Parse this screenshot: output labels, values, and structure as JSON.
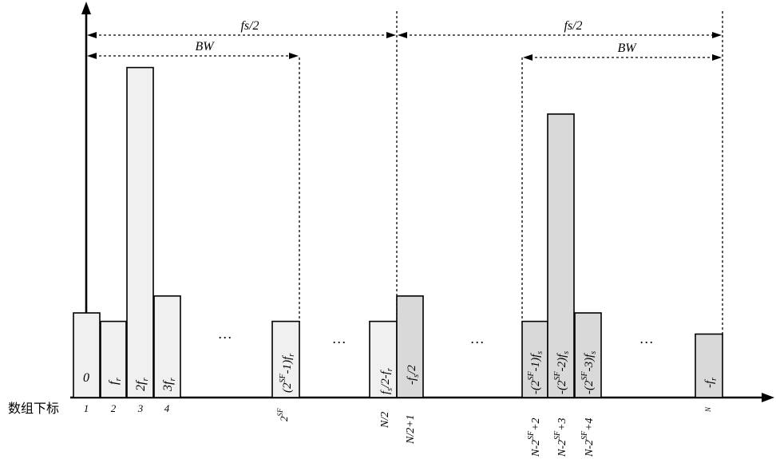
{
  "axis_label": "数组下标",
  "colors": {
    "bar_light": "#f0f0f0",
    "bar_dark": "#d9d9d9",
    "line": "#000000"
  },
  "spans": {
    "left_fs": "fs/2",
    "left_bw": "BW",
    "right_fs": "fs/2",
    "right_bw": "BW"
  },
  "ellipsis": "…",
  "bars": [
    {
      "id": "bar-0",
      "index_label": "1",
      "inner_label": "0",
      "height_level": 1.0,
      "shade": "light"
    },
    {
      "id": "bar-fr",
      "index_label": "2",
      "inner_label": "f_r",
      "height_level": 0.9,
      "shade": "light"
    },
    {
      "id": "bar-2fr",
      "index_label": "3",
      "inner_label": "2f_r",
      "height_level": 3.9,
      "shade": "light"
    },
    {
      "id": "bar-3fr",
      "index_label": "4",
      "inner_label": "3f_r",
      "height_level": 1.2,
      "shade": "light"
    },
    {
      "id": "bar-max",
      "index_label": "2^SF",
      "inner_label": "(2^SF-1)f_r",
      "height_level": 0.9,
      "shade": "light"
    },
    {
      "id": "bar-fs2-fr",
      "index_label": "N/2",
      "inner_label": "fs/2-f_r",
      "height_level": 0.9,
      "shade": "light"
    },
    {
      "id": "bar-neg-fs2",
      "index_label": "N/2+1",
      "inner_label": "-fs/2",
      "height_level": 1.2,
      "shade": "dark"
    },
    {
      "id": "bar-neg-1",
      "index_label": "N-2^SF+2",
      "inner_label": "-(2^SF-1)fs",
      "height_level": 0.9,
      "shade": "dark"
    },
    {
      "id": "bar-neg-2",
      "index_label": "N-2^SF+3",
      "inner_label": "-(2^SF-2)fs",
      "height_level": 3.35,
      "shade": "dark"
    },
    {
      "id": "bar-neg-3",
      "index_label": "N-2^SF+4",
      "inner_label": "-(2^SF-3)fs",
      "height_level": 1.0,
      "shade": "dark"
    },
    {
      "id": "bar-neg-fr",
      "index_label": "N",
      "inner_label": "-f_r",
      "height_level": 0.75,
      "shade": "dark"
    }
  ]
}
